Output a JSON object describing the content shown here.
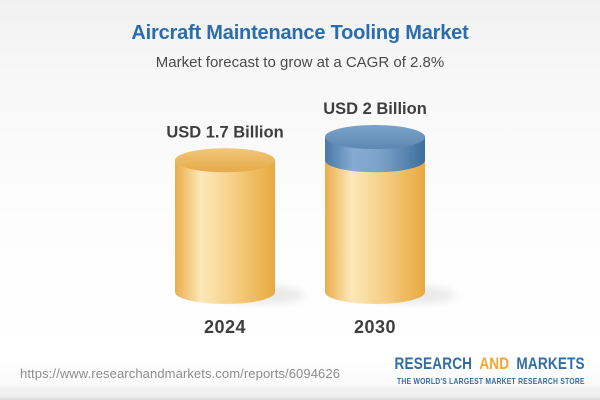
{
  "header": {
    "title": "Aircraft Maintenance Tooling Market",
    "subtitle": "Market forecast to grow at a CAGR of 2.8%"
  },
  "chart_data": {
    "type": "bar",
    "variant": "3d-cylinder",
    "categories": [
      "2024",
      "2030"
    ],
    "values": [
      1.7,
      2
    ],
    "value_labels": [
      "USD 1.7 Billion",
      "USD 2 Billion"
    ],
    "base_value": 1.7,
    "unit": "USD Billion",
    "cagr_percent": 2.8,
    "legend_position": "none",
    "grid": false,
    "colors": {
      "base_segment": "#f0bb59",
      "growth_segment": "#6793bd",
      "label": "#3e3e3e"
    }
  },
  "footer": {
    "report_url": "https://www.researchandmarkets.com/reports/6094626",
    "logo": {
      "word1": "RESEARCH",
      "word2": "AND",
      "word3": "MARKETS",
      "tagline": "THE WORLD'S LARGEST MARKET RESEARCH STORE",
      "color_primary": "#2e6da6",
      "color_accent": "#f0a830"
    }
  },
  "theme": {
    "title_color": "#2b6cae",
    "subtitle_color": "#4a4a4a"
  }
}
